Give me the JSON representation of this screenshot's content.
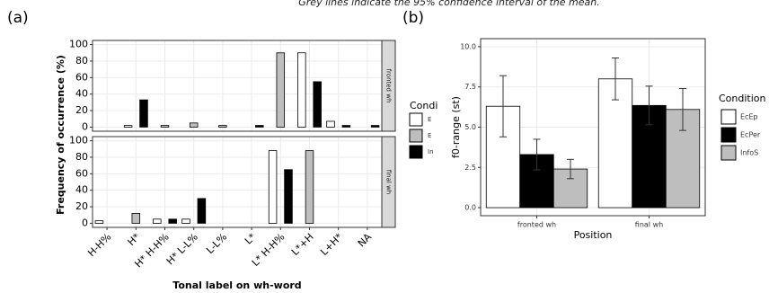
{
  "caption": "Grey lines indicate the 95% confidence interval of the mean.",
  "chart_data": [
    {
      "type": "facet-bar",
      "title": "(a)",
      "x_label": "Tonal label on wh-word",
      "y_label": "Frequency of occurrence (%)",
      "categories": [
        "H-H%",
        "H*",
        "H* H-H%",
        "H* L-L%",
        "L-L%",
        "L*",
        "L* H-H%",
        "L*+H",
        "L+H*",
        "NA"
      ],
      "facets": [
        "fronted wh",
        "final wh"
      ],
      "legend_title": "Condi",
      "series": [
        {
          "name": "E",
          "color": "#ffffff",
          "values": [
            [
              0,
              2,
              0,
              0,
              0,
              0,
              0,
              90,
              7,
              0
            ],
            [
              3,
              0,
              5,
              5,
              0,
              0,
              88,
              0,
              0,
              0
            ]
          ]
        },
        {
          "name": "E",
          "color": "#bebebe",
          "values": [
            [
              0,
              0,
              2,
              5,
              2,
              0,
              90,
              0,
              0,
              0
            ],
            [
              0,
              12,
              0,
              0,
              0,
              0,
              0,
              88,
              0,
              0
            ]
          ]
        },
        {
          "name": "In",
          "color": "#000000",
          "values": [
            [
              0,
              33,
              0,
              0,
              0,
              2,
              0,
              55,
              2,
              2
            ],
            [
              0,
              0,
              5,
              30,
              0,
              0,
              65,
              0,
              0,
              0
            ]
          ]
        }
      ],
      "ylim": [
        -5,
        105
      ],
      "yticks": [
        0,
        20,
        40,
        60,
        80,
        100
      ],
      "grid": true
    },
    {
      "type": "bar-error",
      "title": "(b)",
      "x_label": "Position",
      "y_label": "f0-range (st)",
      "categories": [
        "fronted wh",
        "final wh"
      ],
      "legend_title": "Condition",
      "series": [
        {
          "name": "EcEp",
          "color": "#ffffff",
          "values": [
            6.3,
            8.0
          ],
          "errors": [
            1.9,
            1.3
          ]
        },
        {
          "name": "EcPer",
          "color": "#000000",
          "values": [
            3.3,
            6.35
          ],
          "errors": [
            0.95,
            1.2
          ]
        },
        {
          "name": "InfoS",
          "color": "#bebebe",
          "values": [
            2.4,
            6.1
          ],
          "errors": [
            0.6,
            1.3
          ]
        }
      ],
      "ylim": [
        -0.5,
        10.5
      ],
      "yticks": [
        {
          "value": 0,
          "label": "0.0"
        },
        {
          "value": 2.5,
          "label": "2.5"
        },
        {
          "value": 5,
          "label": "5.0"
        },
        {
          "value": 7.5,
          "label": "7.5"
        },
        {
          "value": 10,
          "label": "10.0"
        }
      ],
      "grid": true
    }
  ]
}
